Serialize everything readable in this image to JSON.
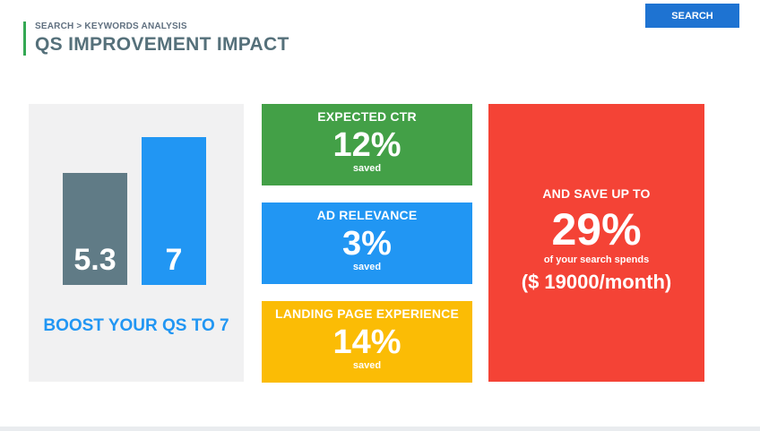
{
  "header": {
    "breadcrumb": "SEARCH > KEYWORDS ANALYSIS",
    "title": "QS IMPROVEMENT IMPACT",
    "search_label": "SEARCH"
  },
  "qs": {
    "current": 5.3,
    "target": 7,
    "current_label": "5.3",
    "target_label": "7",
    "boost_text": "BOOST YOUR QS TO 7"
  },
  "metrics": [
    {
      "label": "EXPECTED CTR",
      "value": "12%",
      "sub": "saved",
      "color": "#43a047"
    },
    {
      "label": "AD RELEVANCE",
      "value": "3%",
      "sub": "saved",
      "color": "#2196f3"
    },
    {
      "label": "LANDING PAGE EXPERIENCE",
      "value": "14%",
      "sub": "saved",
      "color": "#fbbc05"
    }
  ],
  "savings": {
    "label": "AND SAVE UP TO",
    "value": "29%",
    "sub": "of your search spends",
    "amount": "($ 19000/month)",
    "color": "#f44336"
  }
}
